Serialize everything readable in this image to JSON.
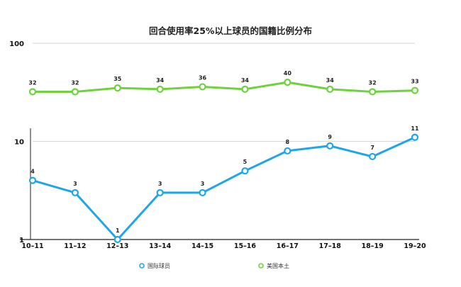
{
  "chart_data": {
    "type": "line",
    "title": "回合使用率25%以上球员的国籍比例分布",
    "categories": [
      "10-11",
      "11-12",
      "12-13",
      "13-14",
      "14-15",
      "15-16",
      "16-17",
      "17-18",
      "18-19",
      "19-20"
    ],
    "y_scale": "log",
    "ylim": [
      1,
      100
    ],
    "yticks": [
      1,
      10,
      100
    ],
    "ytick_labels": [
      "1",
      "10",
      "100"
    ],
    "grid": true,
    "legend_position": "bottom",
    "series": [
      {
        "name": "国际球员",
        "color": "#1ea6e6",
        "values": [
          4,
          3,
          1,
          3,
          3,
          5,
          8,
          9,
          7,
          11
        ],
        "labels": [
          "4",
          "3",
          "1",
          "3",
          "3",
          "5",
          "8",
          "9",
          "7",
          "11"
        ]
      },
      {
        "name": "美国本土",
        "color": "#6ed23c",
        "values": [
          32,
          32,
          35,
          34,
          36,
          34,
          40,
          34,
          32,
          33
        ],
        "labels": [
          "32",
          "32",
          "35",
          "34",
          "36",
          "34",
          "40",
          "34",
          "32",
          "33"
        ]
      }
    ]
  }
}
